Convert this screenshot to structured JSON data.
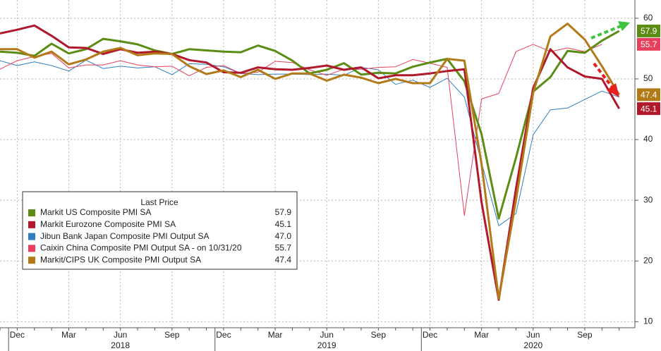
{
  "chart_data": {
    "type": "line",
    "categories": [
      null,
      "Dec",
      null,
      null,
      "Mar",
      null,
      null,
      "Jun",
      null,
      null,
      "Sep",
      null,
      null,
      "Dec",
      null,
      null,
      "Mar",
      null,
      null,
      "Jun",
      null,
      null,
      "Sep",
      null,
      null,
      "Dec",
      null,
      null,
      "Mar",
      null,
      null,
      "Jun",
      null,
      null,
      "Sep",
      null,
      null
    ],
    "year_labels": [
      "2018",
      "2019",
      "2020"
    ],
    "ylim": [
      9,
      63
    ],
    "yticks": [
      10,
      20,
      30,
      40,
      50,
      60
    ],
    "grid": true,
    "y_axis_side": "right",
    "legend": {
      "title": "Last Price",
      "position": "lower left"
    },
    "series": [
      {
        "name": "Markit US Composite PMI SA",
        "color": "#5b8c14",
        "line_width": 3,
        "last_label": "57.9",
        "values": [
          54.5,
          54.3,
          53.8,
          55.8,
          54.2,
          54.9,
          56.6,
          56.2,
          55.7,
          54.7,
          54.1,
          54.9,
          54.7,
          54.5,
          54.4,
          55.5,
          54.6,
          53.0,
          50.9,
          51.5,
          52.6,
          50.7,
          51.0,
          50.9,
          52.0,
          52.7,
          53.3,
          49.6,
          40.9,
          27.0,
          37.0,
          47.9,
          50.3,
          54.6,
          54.3,
          56.3,
          57.9
        ]
      },
      {
        "name": "Markit Eurozone Composite PMI SA",
        "color": "#b0182c",
        "line_width": 3,
        "last_label": "45.1",
        "values": [
          57.5,
          58.1,
          58.8,
          57.1,
          55.2,
          55.1,
          54.1,
          54.9,
          54.3,
          54.5,
          54.1,
          53.1,
          52.7,
          51.1,
          51.0,
          51.9,
          51.6,
          51.5,
          51.8,
          52.2,
          51.5,
          51.9,
          50.1,
          50.6,
          50.6,
          50.9,
          51.3,
          51.6,
          29.7,
          13.6,
          31.9,
          48.5,
          54.9,
          51.9,
          50.4,
          50.0,
          45.1
        ]
      },
      {
        "name": "Jibun Bank Japan Composite PMI Output SA",
        "color": "#2f7ec2",
        "line_width": 1,
        "last_label": "47.0",
        "values": [
          53.0,
          52.2,
          52.8,
          52.2,
          51.3,
          53.1,
          51.7,
          52.1,
          51.8,
          52.0,
          50.7,
          52.5,
          52.4,
          52.0,
          50.9,
          50.7,
          50.8,
          50.8,
          50.7,
          50.8,
          50.6,
          51.9,
          51.5,
          49.1,
          49.8,
          48.6,
          50.1,
          47.0,
          36.2,
          25.8,
          27.8,
          40.8,
          44.9,
          45.2,
          46.6,
          48.0,
          47.0
        ]
      },
      {
        "name": "Caixin China Composite PMI Output SA -  on 10/31/20",
        "color": "#e8405c",
        "line_width": 1,
        "last_label": "55.7",
        "values": [
          51.6,
          53.0,
          53.7,
          54.2,
          51.8,
          52.3,
          52.3,
          53.0,
          52.3,
          52.0,
          52.1,
          50.5,
          51.9,
          52.2,
          50.9,
          51.1,
          52.9,
          52.7,
          51.5,
          50.6,
          51.6,
          51.6,
          51.9,
          52.0,
          53.2,
          52.6,
          51.9,
          27.5,
          46.7,
          47.6,
          54.5,
          55.7,
          54.5,
          55.1,
          54.5,
          55.7,
          null
        ]
      },
      {
        "name": "Markit/CIPS UK Composite PMI Output SA",
        "color": "#b27a18",
        "line_width": 3,
        "last_label": "47.4",
        "values": [
          54.9,
          54.9,
          53.5,
          54.5,
          52.4,
          53.2,
          54.5,
          55.1,
          53.9,
          54.2,
          54.1,
          52.1,
          50.8,
          51.4,
          50.3,
          51.5,
          50.0,
          50.9,
          50.9,
          49.7,
          50.7,
          50.2,
          49.3,
          50.0,
          49.3,
          49.3,
          53.3,
          53.0,
          36.0,
          13.8,
          30.0,
          47.7,
          57.0,
          59.1,
          56.5,
          52.1,
          47.4
        ]
      }
    ]
  }
}
